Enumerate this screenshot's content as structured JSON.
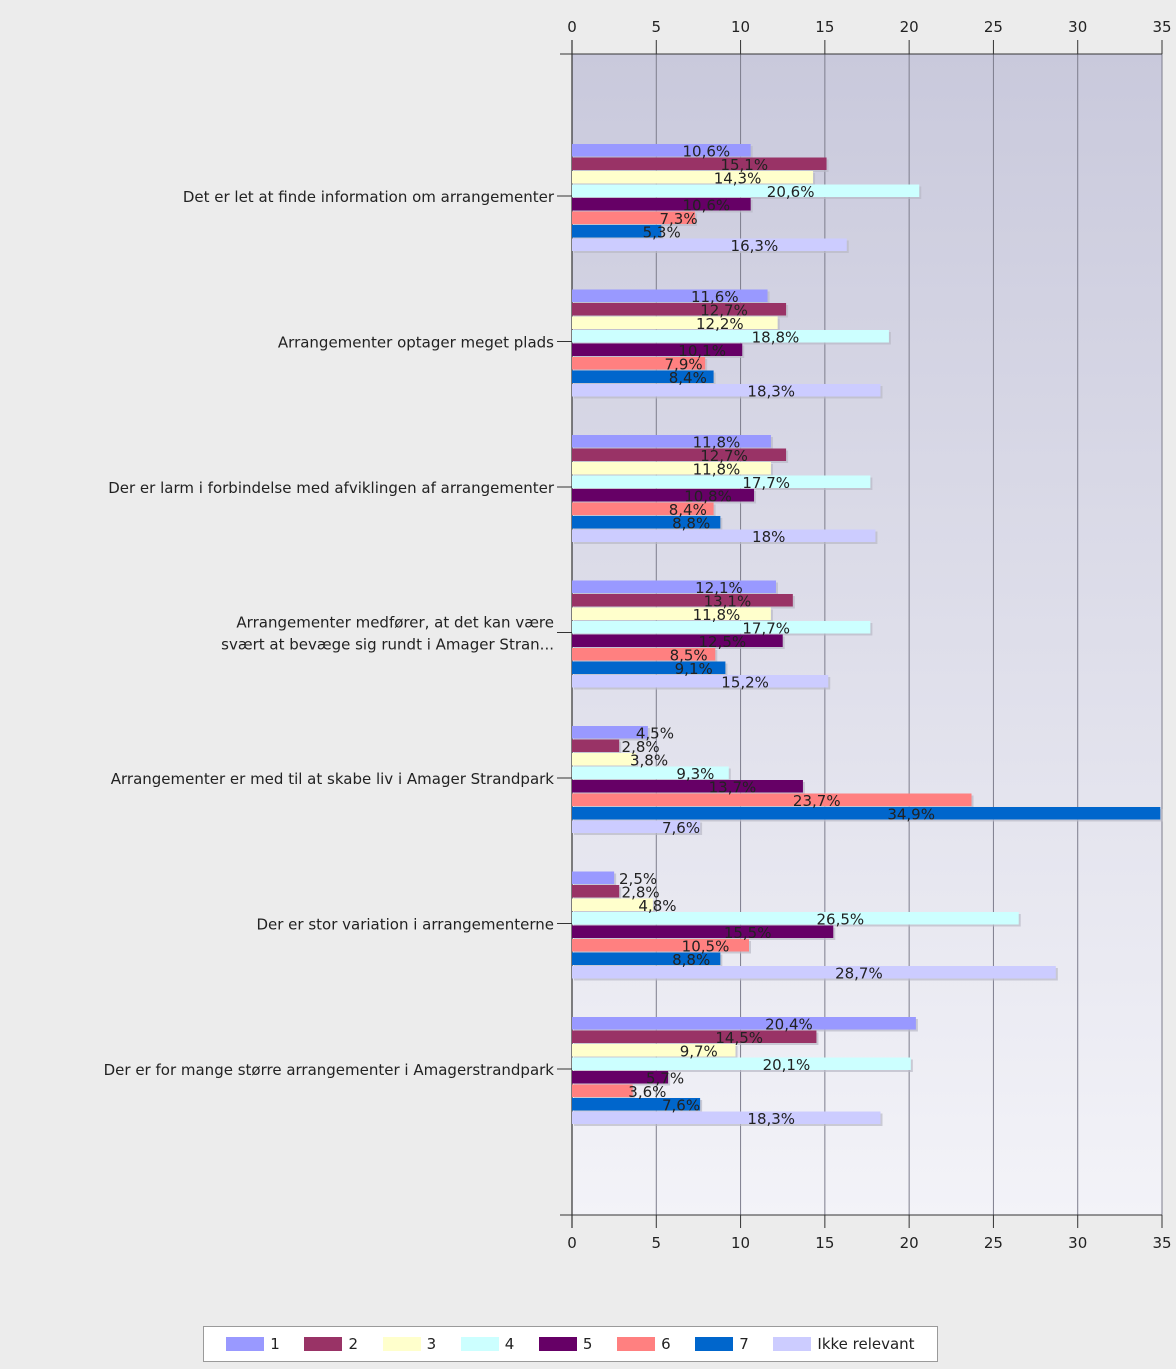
{
  "chart_data": {
    "type": "bar",
    "orientation": "horizontal",
    "xlim": [
      0,
      35
    ],
    "xticks": [
      0,
      5,
      10,
      15,
      20,
      25,
      30,
      35
    ],
    "grid": true,
    "legend_position": "bottom",
    "categories": [
      [
        "Det er let at finde information om arrangementer"
      ],
      [
        "Arrangementer optager meget plads"
      ],
      [
        "Der er larm i forbindelse med afviklingen af arrangementer"
      ],
      [
        "Arrangementer medfører, at det kan være",
        "svært at bevæge sig rundt i Amager Stran..."
      ],
      [
        "Arrangementer er med til at skabe liv i Amager Strandpark"
      ],
      [
        "Der er stor variation i arrangementerne"
      ],
      [
        "Der er for mange større arrangementer i Amagerstrandpark"
      ]
    ],
    "series": [
      {
        "name": "1",
        "color": "#9999ff",
        "values": [
          10.6,
          11.6,
          11.8,
          12.1,
          4.5,
          2.5,
          20.4
        ],
        "labels": [
          "10,6%",
          "11,6%",
          "11,8%",
          "12,1%",
          "4,5%",
          "2,5%",
          "20,4%"
        ]
      },
      {
        "name": "2",
        "color": "#993366",
        "values": [
          15.1,
          12.7,
          12.7,
          13.1,
          2.8,
          2.8,
          14.5
        ],
        "labels": [
          "15,1%",
          "12,7%",
          "12,7%",
          "13,1%",
          "2,8%",
          "2,8%",
          "14,5%"
        ]
      },
      {
        "name": "3",
        "color": "#ffffcc",
        "values": [
          14.3,
          12.2,
          11.8,
          11.8,
          3.8,
          4.8,
          9.7
        ],
        "labels": [
          "14,3%",
          "12,2%",
          "11,8%",
          "11,8%",
          "3,8%",
          "4,8%",
          "9,7%"
        ]
      },
      {
        "name": "4",
        "color": "#ccffff",
        "values": [
          20.6,
          18.8,
          17.7,
          17.7,
          9.3,
          26.5,
          20.1
        ],
        "labels": [
          "20,6%",
          "18,8%",
          "17,7%",
          "17,7%",
          "9,3%",
          "26,5%",
          "20,1%"
        ]
      },
      {
        "name": "5",
        "color": "#660066",
        "values": [
          10.6,
          10.1,
          10.8,
          12.5,
          13.7,
          15.5,
          5.7
        ],
        "labels": [
          "10,6%",
          "10,1%",
          "10,8%",
          "12,5%",
          "13,7%",
          "15,5%",
          "5,7%"
        ]
      },
      {
        "name": "6",
        "color": "#ff8080",
        "values": [
          7.3,
          7.9,
          8.4,
          8.5,
          23.7,
          10.5,
          3.6
        ],
        "labels": [
          "7,3%",
          "7,9%",
          "8,4%",
          "8,5%",
          "23,7%",
          "10,5%",
          "3,6%"
        ]
      },
      {
        "name": "7",
        "color": "#0066cc",
        "values": [
          5.3,
          8.4,
          8.8,
          9.1,
          34.9,
          8.8,
          7.6
        ],
        "labels": [
          "5,3%",
          "8,4%",
          "8,8%",
          "9,1%",
          "34,9%",
          "8,8%",
          "7,6%"
        ]
      },
      {
        "name": "Ikke relevant",
        "color": "#ccccff",
        "values": [
          16.3,
          18.3,
          18.0,
          15.2,
          7.6,
          28.7,
          18.3
        ],
        "labels": [
          "16,3%",
          "18,3%",
          "18%",
          "15,2%",
          "7,6%",
          "28,7%",
          "18,3%"
        ]
      }
    ]
  }
}
